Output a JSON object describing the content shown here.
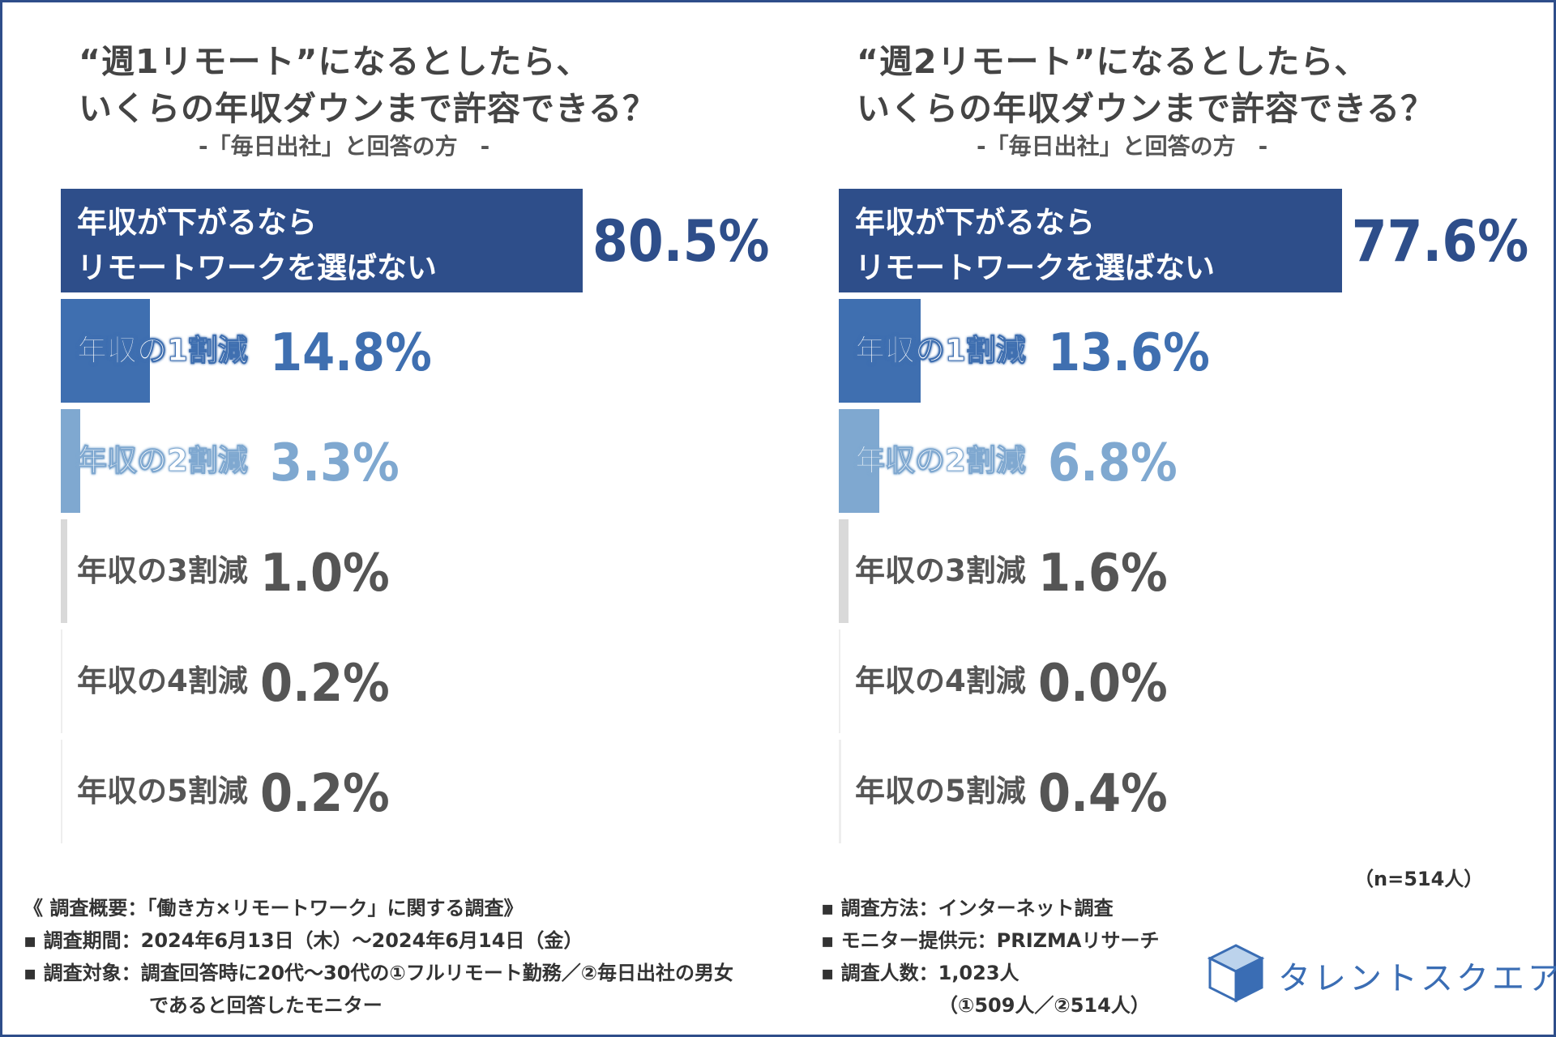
{
  "charts": [
    {
      "title_line1": "“週1リモート”になるとしたら、",
      "title_line2": "いくらの年収ダウンまで許容できる？",
      "subtitle": "-「毎日出社」と回答の方　-"
    },
    {
      "title_line1": "“週2リモート”になるとしたら、",
      "title_line2": "いくらの年収ダウンまで許容できる？",
      "subtitle": "-「毎日出社」と回答の方　-"
    }
  ],
  "chart_data": [
    {
      "type": "bar",
      "orientation": "horizontal",
      "title": "“週1リモート”になるとしたら、いくらの年収ダウンまで許容できる？",
      "subtitle": "-「毎日出社」と回答の方　-",
      "categories": [
        "年収が下がるならリモートワークを選ばない",
        "年収の1割減",
        "年収の2割減",
        "年収の3割減",
        "年収の4割減",
        "年収の5割減"
      ],
      "category_lines": [
        [
          "年収が下がるなら",
          "リモートワークを選ばない"
        ],
        [
          "年収の1割減"
        ],
        [
          "年収の2割減"
        ],
        [
          "年収の3割減"
        ],
        [
          "年収の4割減"
        ],
        [
          "年収の5割減"
        ]
      ],
      "values": [
        80.5,
        14.8,
        3.3,
        1.0,
        0.2,
        0.2
      ],
      "value_labels": [
        "80.5%",
        "14.8%",
        "3.3%",
        "1.0%",
        "0.2%",
        "0.2%"
      ],
      "unit": "%"
    },
    {
      "type": "bar",
      "orientation": "horizontal",
      "title": "“週2リモート”になるとしたら、いくらの年収ダウンまで許容できる？",
      "subtitle": "-「毎日出社」と回答の方　-",
      "categories": [
        "年収が下がるならリモートワークを選ばない",
        "年収の1割減",
        "年収の2割減",
        "年収の3割減",
        "年収の4割減",
        "年収の5割減"
      ],
      "category_lines": [
        [
          "年収が下がるなら",
          "リモートワークを選ばない"
        ],
        [
          "年収の1割減"
        ],
        [
          "年収の2割減"
        ],
        [
          "年収の3割減"
        ],
        [
          "年収の4割減"
        ],
        [
          "年収の5割減"
        ]
      ],
      "values": [
        77.6,
        13.6,
        6.8,
        1.6,
        0.0,
        0.4
      ],
      "value_labels": [
        "77.6%",
        "13.6%",
        "6.8%",
        "1.6%",
        "0.0%",
        "0.4%"
      ],
      "unit": "%",
      "sample_note": "（n=514人）"
    }
  ],
  "colors": {
    "bar": [
      "#2e4e8a",
      "#3f6fb0",
      "#7fa8d0",
      "#d9d9d9",
      "#eeeeee",
      "#eeeeee"
    ],
    "value_text": [
      "#2e4e8a",
      "#3f6fb0",
      "#7fa8d0",
      "#555555",
      "#555555",
      "#555555"
    ],
    "label_text_small": "#555555",
    "frame": "#2e4e8a"
  },
  "footer": {
    "survey_title": "《 調査概要：「働き方×リモートワーク」に関する調査》",
    "period": "▪ 調査期間：2024年6月13日（木）～2024年6月14日（金）",
    "target_line1": "▪ 調査対象：調査回答時に20代～30代の①フルリモート勤務／②毎日出社の男女",
    "target_line2": "であると回答したモニター",
    "method": "▪ 調査方法：インターネット調査",
    "provider": "▪ モニター提供元：PRIZMAリサーチ",
    "count": "▪ 調査人数：1,023人",
    "count_detail": "（①509人／②514人）"
  },
  "logo": {
    "name": "タレントスクエア",
    "icon": "cube-icon"
  }
}
